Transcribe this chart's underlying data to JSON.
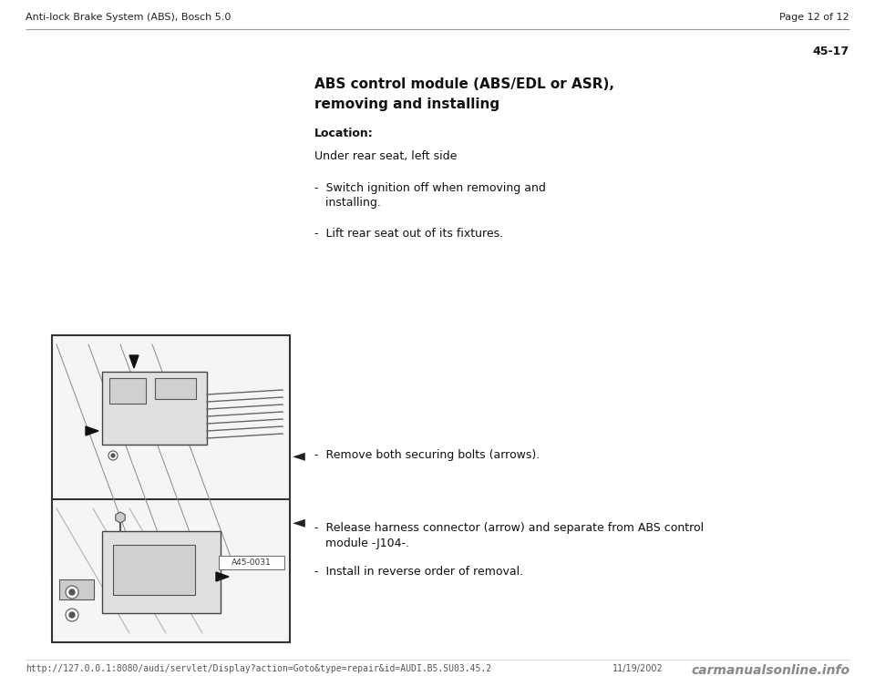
{
  "bg_color": "#ffffff",
  "page_width": 9.6,
  "page_height": 7.42,
  "dpi": 100,
  "header_left": "Anti-lock Brake System (ABS), Bosch 5.0",
  "header_right": "Page 12 of 12",
  "page_number": "45-17",
  "title_line1": "ABS control module (ABS/EDL or ASR),",
  "title_line2": "removing and installing",
  "location_label": "Location:",
  "location_text": "Under rear seat, left side",
  "bullet1_line1": "-  Switch ignition off when removing and",
  "bullet1_line2": "   installing.",
  "bullet2": "-  Lift rear seat out of its fixtures.",
  "arrow_symbol": "◄",
  "bullet3": "-  Remove both securing bolts (arrows).",
  "bullet4_line1": "-  Release harness connector (arrow) and separate from ABS control",
  "bullet4_line2": "   module -J104-.",
  "bullet5": "-  Install in reverse order of removal.",
  "img1_label": "A45-0031",
  "footer_url": "http://127.0.0.1:8080/audi/servlet/Display?action=Goto&type=repair&id=AUDI.B5.SU03.45.2",
  "footer_date": "11/19/2002",
  "footer_brand": "carmanualsonline.info",
  "header_font_size": 8,
  "page_num_font_size": 9,
  "title_font_size": 11,
  "body_font_size": 9,
  "footer_font_size": 7,
  "brand_font_size": 10
}
